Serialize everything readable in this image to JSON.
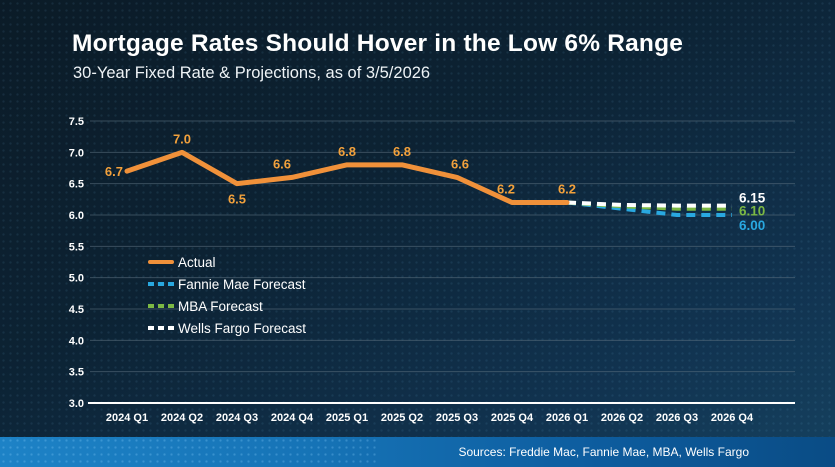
{
  "slide": {
    "title": "Mortgage Rates Should Hover in the Low 6% Range",
    "subtitle": "30-Year Fixed Rate & Projections, as of 3/5/2026",
    "source_bar": {
      "text": "Sources: Freddie Mac, Fannie Mae, MBA, Wells Fargo",
      "bg_left": "#1d82c6",
      "bg_right": "#0a4c85"
    },
    "background_color": "#0d2335"
  },
  "chart_data": {
    "type": "line",
    "title": "Mortgage Rates Should Hover in the Low 6% Range",
    "subtitle": "30-Year Fixed Rate & Projections, as of 3/5/2026",
    "categories": [
      "2024 Q1",
      "2024 Q2",
      "2024 Q3",
      "2024 Q4",
      "2025 Q1",
      "2025 Q2",
      "2025 Q3",
      "2025 Q4",
      "2026 Q1",
      "2026 Q2",
      "2026 Q3",
      "2026 Q4"
    ],
    "ylim": [
      3.0,
      7.5
    ],
    "ytick_step": 0.5,
    "grid": true,
    "legend_position": "inside-left",
    "gridline_color": "#5f7382",
    "axis_label_color": "#ffffff",
    "series": [
      {
        "name": "Actual",
        "style": "solid",
        "color": "#f0913a",
        "label_color": "#f2a13c",
        "values": [
          6.7,
          7.0,
          6.5,
          6.6,
          6.8,
          6.8,
          6.6,
          6.2,
          6.2,
          null,
          null,
          null
        ],
        "point_labels": [
          "6.7",
          "7.0",
          "6.5",
          "6.6",
          "6.8",
          "6.8",
          "6.6",
          "6.2",
          "6.2"
        ]
      },
      {
        "name": "Fannie Mae Forecast",
        "style": "dashed",
        "color": "#29a8e0",
        "values": [
          null,
          null,
          null,
          null,
          null,
          null,
          null,
          null,
          6.2,
          6.1,
          6.0,
          6.0
        ],
        "end_label": "6.00"
      },
      {
        "name": "MBA Forecast",
        "style": "dashed",
        "color": "#7cb944",
        "values": [
          null,
          null,
          null,
          null,
          null,
          null,
          null,
          null,
          6.2,
          6.14,
          6.1,
          6.1
        ],
        "end_label": "6.10"
      },
      {
        "name": "Wells Fargo Forecast",
        "style": "dashed",
        "color": "#ffffff",
        "values": [
          null,
          null,
          null,
          null,
          null,
          null,
          null,
          null,
          6.2,
          6.16,
          6.15,
          6.15
        ],
        "end_label": "6.15"
      }
    ],
    "label_offsets": [
      [
        -4,
        5,
        "end"
      ],
      [
        0,
        -9,
        "middle"
      ],
      [
        0,
        20,
        "middle"
      ],
      [
        -10,
        -9,
        "middle"
      ],
      [
        0,
        -9,
        "middle"
      ],
      [
        0,
        -9,
        "middle"
      ],
      [
        3,
        -9,
        "middle"
      ],
      [
        -6,
        -9,
        "middle"
      ],
      [
        0,
        -9,
        "middle"
      ]
    ],
    "end_label_dy": {
      "Fannie Mae Forecast": 15,
      "MBA Forecast": 7,
      "Wells Fargo Forecast": -3
    }
  }
}
